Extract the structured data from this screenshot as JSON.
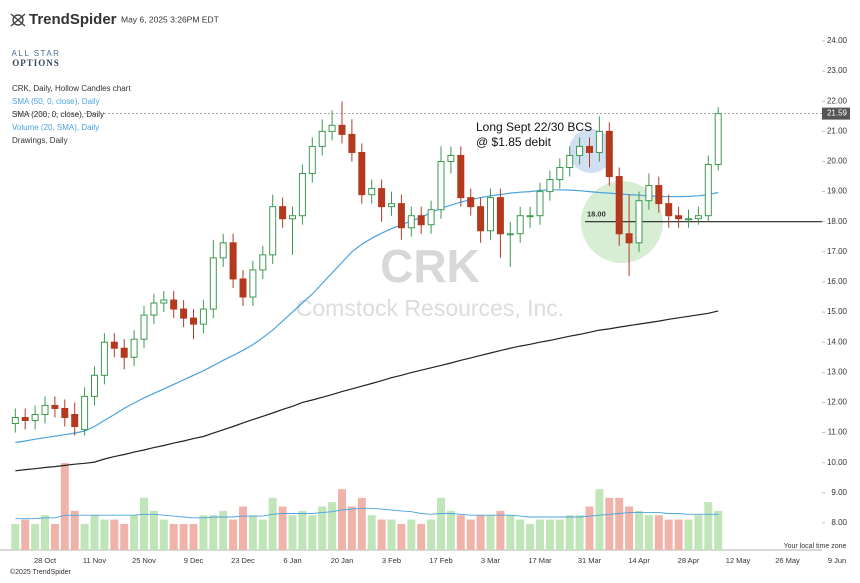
{
  "header": {
    "brand": "TrendSpider",
    "timestamp": "May 6, 2025 3:26PM EDT",
    "logo_line1": "ALL STAR",
    "logo_line2": "OPTIONS"
  },
  "footer": {
    "copyright": "©2025 TrendSpider",
    "timezone": "Your local time zone"
  },
  "chart_data": {
    "type": "candlestick",
    "title": "CRK, Daily, Hollow Candles chart",
    "symbol": "CRK",
    "subtitle": "Comstock Resources, Inc.",
    "drawings_label": "Drawings, Daily",
    "annotations": [
      "Long Sept 22/30 BCS",
      "@ $1.85 debit"
    ],
    "up_color": "#3d9a50",
    "down_color": "#b5391f",
    "categories": [
      null,
      null,
      null,
      "28 Oct",
      null,
      null,
      null,
      null,
      "11 Nov",
      null,
      null,
      null,
      null,
      "25 Nov",
      null,
      null,
      null,
      null,
      "9 Dec",
      null,
      null,
      null,
      null,
      "23 Dec",
      null,
      null,
      null,
      null,
      "6 Jan",
      null,
      null,
      null,
      null,
      "20 Jan",
      null,
      null,
      null,
      null,
      "3 Feb",
      null,
      null,
      null,
      null,
      "17 Feb",
      null,
      null,
      null,
      null,
      "3 Mar",
      null,
      null,
      null,
      null,
      "17 Mar",
      null,
      null,
      null,
      null,
      "31 Mar",
      null,
      null,
      null,
      null,
      "14 Apr",
      null,
      null,
      null,
      null,
      "28 Apr",
      null,
      null,
      null,
      null,
      "12 May",
      null,
      null,
      null,
      null,
      "26 May",
      null,
      null,
      null,
      null,
      "9 Jun"
    ],
    "open": [
      11.3,
      11.5,
      11.4,
      11.6,
      11.9,
      11.8,
      11.6,
      11.1,
      12.2,
      12.9,
      14.0,
      13.8,
      13.5,
      14.1,
      14.9,
      15.3,
      15.4,
      15.1,
      14.8,
      14.6,
      15.1,
      16.8,
      17.3,
      16.1,
      15.5,
      16.4,
      16.9,
      18.5,
      18.1,
      18.2,
      19.6,
      20.5,
      21.0,
      21.2,
      20.9,
      20.3,
      18.9,
      19.1,
      18.5,
      18.6,
      17.8,
      18.2,
      17.9,
      18.4,
      20.0,
      20.2,
      18.8,
      18.5,
      17.7,
      18.8,
      17.6,
      17.6,
      18.2,
      18.2,
      19.0,
      19.4,
      19.8,
      20.2,
      20.5,
      20.3,
      21.0,
      19.5,
      17.6,
      17.3,
      18.7,
      19.2,
      18.6,
      18.2,
      18.1,
      18.1,
      18.2,
      19.9,
      null,
      null,
      null,
      null,
      null,
      null,
      null,
      null,
      null,
      null,
      null,
      null
    ],
    "high": [
      11.8,
      11.8,
      11.9,
      12.2,
      12.2,
      12.1,
      12.0,
      12.5,
      13.2,
      14.3,
      14.3,
      14.1,
      14.4,
      15.2,
      15.6,
      15.7,
      15.7,
      15.4,
      15.1,
      15.4,
      17.4,
      17.6,
      17.6,
      16.4,
      16.7,
      17.2,
      18.9,
      18.8,
      18.5,
      19.9,
      20.8,
      21.4,
      21.7,
      22.0,
      21.4,
      20.6,
      19.4,
      19.4,
      19.0,
      18.9,
      18.5,
      18.5,
      18.7,
      20.5,
      20.5,
      20.5,
      19.1,
      18.8,
      19.1,
      19.1,
      18.0,
      18.5,
      18.5,
      19.3,
      19.7,
      20.1,
      20.5,
      20.8,
      20.8,
      21.5,
      21.3,
      19.8,
      18.9,
      19.0,
      19.6,
      19.5,
      18.9,
      18.5,
      18.4,
      18.5,
      20.2,
      21.8,
      null,
      null,
      null,
      null,
      null,
      null,
      null,
      null,
      null,
      null,
      null,
      null
    ],
    "low": [
      11.0,
      11.1,
      11.1,
      11.3,
      11.5,
      11.2,
      10.9,
      10.9,
      11.9,
      12.6,
      13.5,
      13.1,
      13.2,
      13.8,
      14.6,
      15.0,
      14.8,
      14.5,
      14.1,
      14.3,
      14.8,
      16.5,
      15.8,
      15.2,
      15.2,
      16.1,
      16.6,
      17.8,
      16.9,
      17.9,
      19.3,
      20.2,
      20.7,
      20.6,
      20.0,
      18.6,
      18.6,
      18.0,
      18.2,
      17.4,
      17.5,
      17.6,
      17.6,
      18.1,
      19.6,
      18.5,
      18.2,
      17.3,
      17.4,
      16.8,
      16.5,
      17.3,
      17.8,
      17.9,
      18.7,
      19.1,
      19.5,
      19.9,
      19.8,
      20.0,
      19.2,
      17.2,
      16.2,
      17.0,
      18.4,
      18.3,
      17.8,
      17.8,
      17.8,
      17.9,
      18.0,
      19.7,
      null,
      null,
      null,
      null,
      null,
      null,
      null,
      null,
      null,
      null,
      null,
      null
    ],
    "close": [
      11.5,
      11.4,
      11.6,
      11.9,
      11.8,
      11.5,
      11.2,
      12.2,
      12.9,
      14.0,
      13.8,
      13.5,
      14.1,
      14.9,
      15.3,
      15.4,
      15.1,
      14.8,
      14.6,
      15.1,
      16.8,
      17.3,
      16.1,
      15.5,
      16.4,
      16.9,
      18.5,
      18.1,
      18.2,
      19.6,
      20.5,
      21.0,
      21.2,
      20.9,
      20.3,
      18.9,
      19.1,
      18.5,
      18.6,
      17.8,
      18.2,
      17.9,
      18.4,
      20.0,
      20.2,
      18.8,
      18.5,
      17.7,
      18.8,
      17.6,
      17.6,
      18.2,
      18.2,
      19.0,
      19.4,
      19.8,
      20.2,
      20.5,
      20.3,
      21.0,
      19.5,
      17.6,
      17.3,
      18.7,
      19.2,
      18.6,
      18.2,
      18.1,
      18.1,
      18.2,
      19.9,
      21.59,
      null,
      null,
      null,
      null,
      null,
      null,
      null,
      null,
      null,
      null,
      null,
      null
    ],
    "series": [
      {
        "name": "SMA (50, 0, close), Daily",
        "color": "#4aa3df",
        "values": [
          10.67,
          10.72,
          10.78,
          10.83,
          10.88,
          10.93,
          10.98,
          11.05,
          11.2,
          11.4,
          11.6,
          11.8,
          11.98,
          12.15,
          12.3,
          12.45,
          12.6,
          12.75,
          12.9,
          13.05,
          13.22,
          13.4,
          13.56,
          13.73,
          13.92,
          14.15,
          14.4,
          14.7,
          15.0,
          15.3,
          15.6,
          15.95,
          16.3,
          16.65,
          17.0,
          17.25,
          17.45,
          17.62,
          17.77,
          17.9,
          18.02,
          18.15,
          18.3,
          18.45,
          18.55,
          18.65,
          18.73,
          18.8,
          18.86,
          18.9,
          18.95,
          18.98,
          19.0,
          19.04,
          19.06,
          19.06,
          19.05,
          19.03,
          19.0,
          18.97,
          18.95,
          18.92,
          18.9,
          18.88,
          18.86,
          18.84,
          18.83,
          18.83,
          18.84,
          18.86,
          18.9,
          18.97,
          null,
          null,
          null,
          null,
          null,
          null,
          null,
          null,
          null,
          null,
          null,
          null
        ]
      },
      {
        "name": "SMA (200, 0, close), Daily",
        "color": "#222222",
        "values": [
          9.73,
          9.77,
          9.8,
          9.84,
          9.87,
          9.91,
          9.95,
          9.98,
          10.02,
          10.12,
          10.2,
          10.27,
          10.35,
          10.42,
          10.5,
          10.57,
          10.65,
          10.72,
          10.8,
          10.87,
          10.98,
          11.09,
          11.2,
          11.32,
          11.43,
          11.54,
          11.65,
          11.77,
          11.87,
          12.0,
          12.08,
          12.17,
          12.26,
          12.36,
          12.45,
          12.54,
          12.63,
          12.72,
          12.82,
          12.9,
          12.99,
          13.07,
          13.15,
          13.23,
          13.31,
          13.4,
          13.48,
          13.56,
          13.64,
          13.72,
          13.8,
          13.87,
          13.93,
          14.0,
          14.06,
          14.13,
          14.2,
          14.26,
          14.33,
          14.4,
          14.44,
          14.5,
          14.55,
          14.6,
          14.65,
          14.7,
          14.76,
          14.81,
          14.86,
          14.91,
          14.96,
          15.04,
          null,
          null,
          null,
          null,
          null,
          null,
          null,
          null,
          null,
          null,
          null,
          null
        ]
      }
    ],
    "volume": {
      "name": "Volume (20, SMA), Daily",
      "color": "#4aa3df",
      "up_color": "#bfe5b8",
      "down_color": "#f0b3aa",
      "vlim": [
        0,
        11.5
      ],
      "values": [
        3,
        3.5,
        3,
        4,
        3,
        10,
        4.5,
        3,
        4,
        3.5,
        3.5,
        3,
        4,
        6,
        4.5,
        3.5,
        3,
        3,
        3,
        4,
        4,
        4.5,
        3.5,
        5,
        4,
        3.5,
        6,
        5,
        4,
        4.5,
        4,
        5,
        5.5,
        7,
        5,
        6,
        4,
        3.5,
        3.5,
        3,
        3.5,
        3,
        3.5,
        6,
        4.5,
        4,
        3.5,
        4,
        4,
        4.5,
        4,
        3.5,
        3,
        3.5,
        3.5,
        3.5,
        4,
        4,
        5,
        7,
        6,
        6,
        5,
        4.5,
        4,
        4,
        3.5,
        3.5,
        3.5,
        4,
        5.5,
        4.5,
        null,
        null,
        null,
        null,
        null,
        null,
        null,
        null,
        null,
        null,
        null,
        null
      ],
      "sma": [
        3.6,
        3.6,
        3.6,
        3.7,
        3.7,
        4.0,
        4.0,
        4.0,
        4.0,
        4.0,
        4.0,
        4.0,
        4.0,
        4.1,
        4.1,
        4.0,
        3.9,
        3.8,
        3.7,
        3.7,
        3.8,
        3.8,
        3.8,
        3.9,
        3.9,
        3.9,
        4.1,
        4.2,
        4.2,
        4.2,
        4.2,
        4.3,
        4.4,
        4.6,
        4.7,
        4.8,
        4.8,
        4.7,
        4.6,
        4.5,
        4.4,
        4.2,
        4.1,
        4.2,
        4.2,
        4.1,
        4.0,
        4.0,
        4.0,
        4.0,
        4.0,
        3.9,
        3.8,
        3.8,
        3.8,
        3.8,
        3.8,
        3.8,
        3.9,
        4.0,
        4.1,
        4.2,
        4.3,
        4.3,
        4.3,
        4.3,
        4.2,
        4.2,
        4.1,
        4.1,
        4.1,
        4.1,
        null,
        null,
        null,
        null,
        null,
        null,
        null,
        null,
        null,
        null,
        null,
        null
      ]
    },
    "hlines": [
      {
        "value": 18,
        "label": "18.00"
      }
    ],
    "ylim": [
      7.1,
      25.03
    ],
    "yticks": [
      {
        "value": 8,
        "label": "8.00"
      },
      {
        "value": 9,
        "label": "9.00"
      },
      {
        "value": 10,
        "label": "10.00"
      },
      {
        "value": 11,
        "label": "11.00"
      },
      {
        "value": 12,
        "label": "12.00"
      },
      {
        "value": 13,
        "label": "13.00"
      },
      {
        "value": 14,
        "label": "14.00"
      },
      {
        "value": 15,
        "label": "15.00"
      },
      {
        "value": 16,
        "label": "16.00"
      },
      {
        "value": 17,
        "label": "17.00"
      },
      {
        "value": 18,
        "label": "18.00"
      },
      {
        "value": 19,
        "label": "19.00"
      },
      {
        "value": 20,
        "label": "20.00"
      },
      {
        "value": 21,
        "label": "21.00"
      },
      {
        "value": 22,
        "label": "22.00"
      },
      {
        "value": 23,
        "label": "23.00"
      },
      {
        "value": 24,
        "label": "24.00"
      }
    ]
  }
}
